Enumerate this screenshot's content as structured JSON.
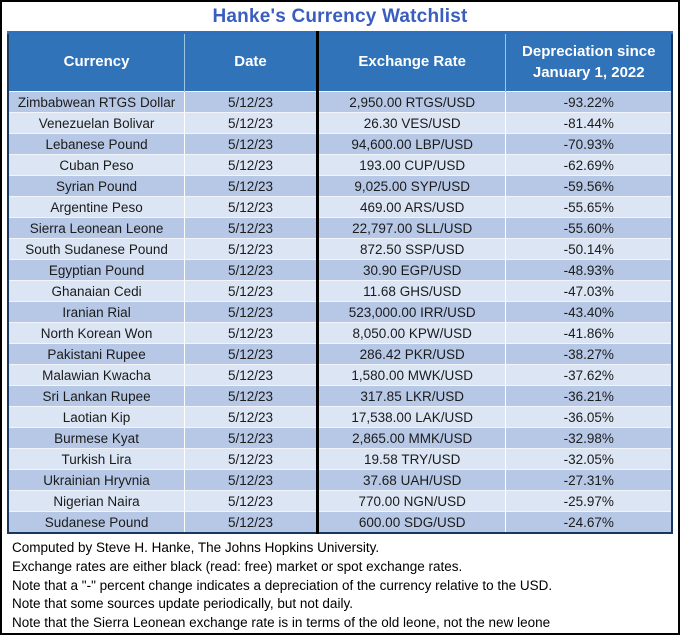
{
  "page_title": "Hanke's Currency Watchlist",
  "chart_data": {
    "type": "table",
    "title": "Hanke's Currency Watchlist",
    "columns": [
      "Currency",
      "Date",
      "Exchange Rate",
      "Depreciation since January 1, 2022"
    ],
    "rows": [
      {
        "currency": "Zimbabwean RTGS Dollar",
        "date": "5/12/23",
        "rate": "2,950.00 RTGS/USD",
        "depreciation": "-93.22%"
      },
      {
        "currency": "Venezuelan Bolivar",
        "date": "5/12/23",
        "rate": "26.30 VES/USD",
        "depreciation": "-81.44%"
      },
      {
        "currency": "Lebanese Pound",
        "date": "5/12/23",
        "rate": "94,600.00 LBP/USD",
        "depreciation": "-70.93%"
      },
      {
        "currency": "Cuban Peso",
        "date": "5/12/23",
        "rate": "193.00 CUP/USD",
        "depreciation": "-62.69%"
      },
      {
        "currency": "Syrian Pound",
        "date": "5/12/23",
        "rate": "9,025.00 SYP/USD",
        "depreciation": "-59.56%"
      },
      {
        "currency": "Argentine Peso",
        "date": "5/12/23",
        "rate": "469.00 ARS/USD",
        "depreciation": "-55.65%"
      },
      {
        "currency": "Sierra Leonean Leone",
        "date": "5/12/23",
        "rate": "22,797.00 SLL/USD",
        "depreciation": "-55.60%"
      },
      {
        "currency": "South Sudanese Pound",
        "date": "5/12/23",
        "rate": "872.50 SSP/USD",
        "depreciation": "-50.14%"
      },
      {
        "currency": "Egyptian Pound",
        "date": "5/12/23",
        "rate": "30.90 EGP/USD",
        "depreciation": "-48.93%"
      },
      {
        "currency": "Ghanaian Cedi",
        "date": "5/12/23",
        "rate": "11.68 GHS/USD",
        "depreciation": "-47.03%"
      },
      {
        "currency": "Iranian Rial",
        "date": "5/12/23",
        "rate": "523,000.00 IRR/USD",
        "depreciation": "-43.40%"
      },
      {
        "currency": "North Korean Won",
        "date": "5/12/23",
        "rate": "8,050.00 KPW/USD",
        "depreciation": "-41.86%"
      },
      {
        "currency": "Pakistani Rupee",
        "date": "5/12/23",
        "rate": "286.42 PKR/USD",
        "depreciation": "-38.27%"
      },
      {
        "currency": "Malawian Kwacha",
        "date": "5/12/23",
        "rate": "1,580.00 MWK/USD",
        "depreciation": "-37.62%"
      },
      {
        "currency": "Sri Lankan Rupee",
        "date": "5/12/23",
        "rate": "317.85 LKR/USD",
        "depreciation": "-36.21%"
      },
      {
        "currency": "Laotian Kip",
        "date": "5/12/23",
        "rate": "17,538.00 LAK/USD",
        "depreciation": "-36.05%"
      },
      {
        "currency": "Burmese Kyat",
        "date": "5/12/23",
        "rate": "2,865.00 MMK/USD",
        "depreciation": "-32.98%"
      },
      {
        "currency": "Turkish Lira",
        "date": "5/12/23",
        "rate": "19.58 TRY/USD",
        "depreciation": "-32.05%"
      },
      {
        "currency": "Ukrainian Hryvnia",
        "date": "5/12/23",
        "rate": "37.68 UAH/USD",
        "depreciation": "-27.31%"
      },
      {
        "currency": "Nigerian Naira",
        "date": "5/12/23",
        "rate": "770.00 NGN/USD",
        "depreciation": "-25.97%"
      },
      {
        "currency": "Sudanese Pound",
        "date": "5/12/23",
        "rate": "600.00 SDG/USD",
        "depreciation": "-24.67%"
      }
    ]
  },
  "notes": [
    "Computed by Steve H. Hanke, The Johns Hopkins University.",
    "Exchange rates are either black (read: free) market or spot exchange rates.",
    "Note that a \"-\" percent change indicates a depreciation of the currency relative to the USD.",
    "Note that some sources update periodically, but not daily.",
    "Note that the Sierra Leonean exchange rate is in terms of the old leone, not the new leone"
  ],
  "colors": {
    "title_text": "#3a5dc0",
    "header_bg": "#3173b9",
    "header_text": "#ffffff",
    "row_dark": "#b7c8e6",
    "row_light": "#dbe5f4",
    "table_top_border": "#2e6fc0",
    "table_border": "#17375e",
    "column_divider_black": "#000000",
    "body_text": "#1b1b1b",
    "notes_text": "#000000"
  }
}
